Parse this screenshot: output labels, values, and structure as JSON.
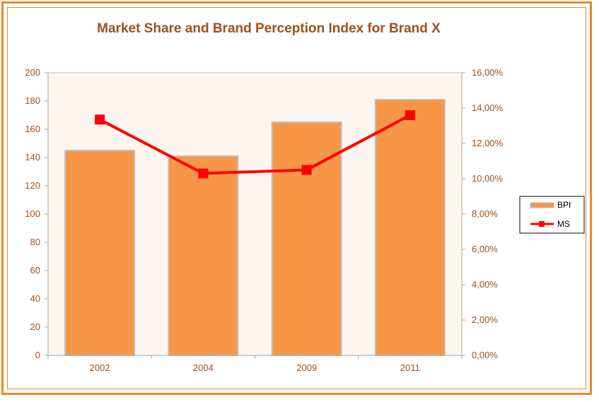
{
  "chart_data": {
    "type": "bar",
    "title": "Market Share and Brand Perception Index for Brand X",
    "categories": [
      "2002",
      "2004",
      "2009",
      "2011"
    ],
    "series": [
      {
        "name": "BPI",
        "type": "bar",
        "axis": "left",
        "values": [
          145,
          141,
          165,
          181
        ]
      },
      {
        "name": "MS",
        "type": "line",
        "axis": "right",
        "values": [
          0.1335,
          0.103,
          0.105,
          0.136
        ]
      }
    ],
    "ylim": [
      0,
      200
    ],
    "y_ticks": [
      "0",
      "20",
      "40",
      "60",
      "80",
      "100",
      "120",
      "140",
      "160",
      "180",
      "200"
    ],
    "y2lim": [
      0,
      0.16
    ],
    "y2_ticks": [
      "0,00%",
      "2,00%",
      "4,00%",
      "6,00%",
      "8,00%",
      "10,00%",
      "12,00%",
      "14,00%",
      "16,00%"
    ],
    "grid": false,
    "legend": "right"
  },
  "colors": {
    "bar": "#F79646",
    "bar_border": "#BFBFBF",
    "line": "#FF0000",
    "plot_bg": "#FDF5F0",
    "frame": "#E8892A",
    "title": "#A0501A"
  }
}
